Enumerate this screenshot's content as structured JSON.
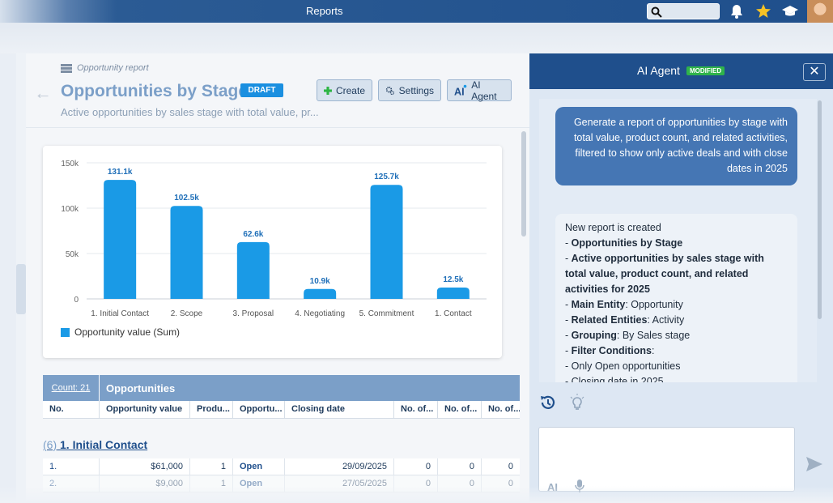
{
  "topbar": {
    "title": "Reports",
    "icons": [
      "search-icon",
      "bell-icon",
      "star-icon",
      "graduation-cap-icon",
      "avatar"
    ]
  },
  "header": {
    "breadcrumb": "Opportunity report",
    "title": "Opportunities by Stage",
    "badge": "DRAFT",
    "subtitle": "Active opportunities by sales stage with total value, pr...",
    "buttons": {
      "create": "Create",
      "settings": "Settings",
      "ai_agent": "AI Agent"
    }
  },
  "chart_data": {
    "type": "bar",
    "categories": [
      "1. Initial Contact",
      "2. Scope",
      "3. Proposal",
      "4. Negotiating",
      "5. Commitment",
      "1. Contact"
    ],
    "values": [
      131100,
      102500,
      62600,
      10900,
      125700,
      12500
    ],
    "data_labels": [
      "131.1k",
      "102.5k",
      "62.6k",
      "10.9k",
      "125.7k",
      "12.5k"
    ],
    "ylim": [
      0,
      150000
    ],
    "yticks": [
      {
        "value": 0,
        "label": "0"
      },
      {
        "value": 50000,
        "label": "50k"
      },
      {
        "value": 100000,
        "label": "100k"
      },
      {
        "value": 150000,
        "label": "150k"
      }
    ],
    "series": [
      {
        "name": "Opportunity value (Sum)",
        "color": "#1a9ae6"
      }
    ],
    "legend": "bottom-left",
    "grid": true
  },
  "grid": {
    "count_label": "Count: 21",
    "title": "Opportunities",
    "columns": [
      "No.",
      "Opportunity value",
      "Produ...",
      "Opportu...",
      "Closing date",
      "No. of...",
      "No. of...",
      "No. of..."
    ],
    "group": {
      "count": "(6)",
      "name": "1. Initial Contact"
    },
    "rows": [
      [
        "1.",
        "$61,000",
        "1",
        "Open",
        "29/09/2025",
        "0",
        "0",
        "0"
      ],
      [
        "2.",
        "$9,000",
        "1",
        "Open",
        "27/05/2025",
        "0",
        "0",
        "0"
      ]
    ]
  },
  "agent": {
    "title": "AI Agent",
    "badge": "MODIFIED",
    "user_message": "Generate a report of opportunities by stage with total value, product count, and related activities, filtered to show only active deals and with close dates in 2025",
    "response": [
      {
        "b": "",
        "t": "New report is created"
      },
      {
        "b": "Opportunities by Stage",
        "t": ""
      },
      {
        "b": "Active opportunities by sales stage with total value, product count, and related activities for 2025",
        "t": ""
      },
      {
        "b": "Main Entity",
        "t": ": Opportunity"
      },
      {
        "b": "Related Entities",
        "t": ": Activity"
      },
      {
        "b": "Grouping",
        "t": ": By Sales stage"
      },
      {
        "b": "Filter Conditions",
        "t": ":"
      },
      {
        "b": "",
        "t": "Only Open opportunities"
      },
      {
        "b": "",
        "t": "Closing date in 2025"
      }
    ]
  }
}
